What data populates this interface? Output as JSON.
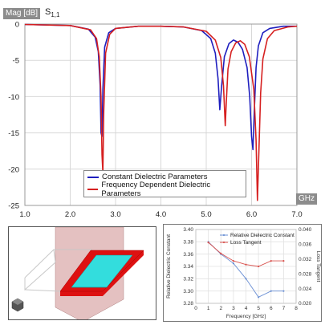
{
  "top_chart": {
    "y_axis_tag": "Mag [dB]",
    "parameter_label": "S",
    "parameter_subscript": "1,1",
    "x_axis_tag": "GHz",
    "x_ticks": [
      "1.0",
      "2.0",
      "3.0",
      "4.0",
      "5.0",
      "6.0",
      "7.0"
    ],
    "y_ticks": [
      "0",
      "-5",
      "-10",
      "-15",
      "-20",
      "-25"
    ],
    "legend": [
      {
        "label": "Constant Dielectric Parameters",
        "color": "#1f1fbf"
      },
      {
        "label": "Frequency Dependent Dielectric Parameters",
        "color": "#d62020"
      }
    ]
  },
  "params_chart": {
    "xlabel": "Frequency [GHz]",
    "ylabel_left": "Relative Dielectric Constant",
    "ylabel_right": "Loss Tangent",
    "x_ticks": [
      "0",
      "1",
      "2",
      "3",
      "4",
      "5",
      "6",
      "7",
      "8"
    ],
    "y_left_ticks": [
      "3.40",
      "3.38",
      "3.36",
      "3.34",
      "3.32",
      "3.30",
      "3.28"
    ],
    "y_right_ticks": [
      "0.040",
      "0.036",
      "0.032",
      "0.028",
      "0.024",
      "0.020"
    ],
    "legend": [
      {
        "label": "Relative Dielectric Constant",
        "color": "#6a8fd4"
      },
      {
        "label": "Loss Tangent",
        "color": "#d9534f"
      }
    ]
  },
  "model": {
    "plate_color": "#dd1111",
    "patch_color": "#33dddd",
    "plane_color": "#d9a7a7"
  },
  "chart_data": [
    {
      "type": "line",
      "xlabel": "GHz",
      "ylabel": "Mag [dB]",
      "xlim": [
        1.0,
        7.0
      ],
      "ylim": [
        -25,
        0
      ],
      "grid": true,
      "legend_position": "bottom-center",
      "series": [
        {
          "name": "Constant Dielectric Parameters",
          "color": "#1f1fbf",
          "x": [
            1.0,
            2.0,
            2.4,
            2.55,
            2.62,
            2.66,
            2.68,
            2.7,
            2.72,
            2.76,
            2.85,
            3.0,
            3.5,
            4.0,
            4.5,
            4.9,
            5.1,
            5.2,
            5.26,
            5.3,
            5.34,
            5.4,
            5.5,
            5.6,
            5.7,
            5.8,
            5.9,
            5.96,
            6.0,
            6.03,
            6.06,
            6.1,
            6.15,
            6.25,
            6.4,
            6.7,
            7.0
          ],
          "y": [
            -0.05,
            -0.2,
            -0.7,
            -1.8,
            -3.8,
            -8.5,
            -15.0,
            -15.5,
            -9.0,
            -3.2,
            -1.2,
            -0.6,
            -0.3,
            -0.3,
            -0.4,
            -0.9,
            -2.0,
            -4.0,
            -7.5,
            -11.8,
            -8.5,
            -4.5,
            -2.7,
            -2.2,
            -2.5,
            -3.5,
            -6.0,
            -10.0,
            -15.5,
            -17.3,
            -12.0,
            -6.0,
            -3.0,
            -1.2,
            -0.6,
            -0.3,
            -0.3
          ]
        },
        {
          "name": "Frequency Dependent Dielectric Parameters",
          "color": "#d62020",
          "x": [
            1.0,
            2.0,
            2.45,
            2.58,
            2.64,
            2.68,
            2.7,
            2.72,
            2.74,
            2.78,
            2.87,
            3.0,
            3.5,
            4.0,
            4.5,
            5.0,
            5.2,
            5.32,
            5.38,
            5.42,
            5.44,
            5.48,
            5.55,
            5.65,
            5.75,
            5.85,
            5.95,
            6.05,
            6.1,
            6.13,
            6.16,
            6.2,
            6.25,
            6.35,
            6.5,
            6.8,
            7.0
          ],
          "y": [
            -0.05,
            -0.2,
            -0.8,
            -2.0,
            -4.5,
            -10.0,
            -18.0,
            -20.5,
            -12.0,
            -4.0,
            -1.4,
            -0.6,
            -0.3,
            -0.3,
            -0.4,
            -1.0,
            -2.2,
            -4.6,
            -8.5,
            -14.0,
            -11.0,
            -6.2,
            -3.8,
            -2.6,
            -2.3,
            -2.8,
            -4.5,
            -9.0,
            -16.0,
            -24.3,
            -18.0,
            -9.5,
            -4.8,
            -2.0,
            -0.9,
            -0.4,
            -0.3
          ]
        }
      ]
    },
    {
      "type": "line",
      "xlabel": "Frequency [GHz]",
      "ylabel": "Relative Dielectric Constant",
      "ylabel_right": "Loss Tangent",
      "xlim": [
        0,
        8
      ],
      "ylim": [
        3.28,
        3.4
      ],
      "ylim_right": [
        0.02,
        0.04
      ],
      "grid": true,
      "legend_position": "top-center",
      "series": [
        {
          "name": "Relative Dielectric Constant",
          "axis": "left",
          "color": "#6a8fd4",
          "x": [
            1,
            2,
            3,
            4,
            5,
            6,
            7
          ],
          "y": [
            3.38,
            3.36,
            3.345,
            3.32,
            3.29,
            3.3,
            3.3
          ]
        },
        {
          "name": "Loss Tangent",
          "axis": "right",
          "color": "#d9534f",
          "x": [
            1,
            2,
            3,
            4,
            5,
            6,
            7
          ],
          "y": [
            0.0365,
            0.0335,
            0.0315,
            0.0305,
            0.03,
            0.0315,
            0.0315
          ]
        }
      ]
    }
  ]
}
